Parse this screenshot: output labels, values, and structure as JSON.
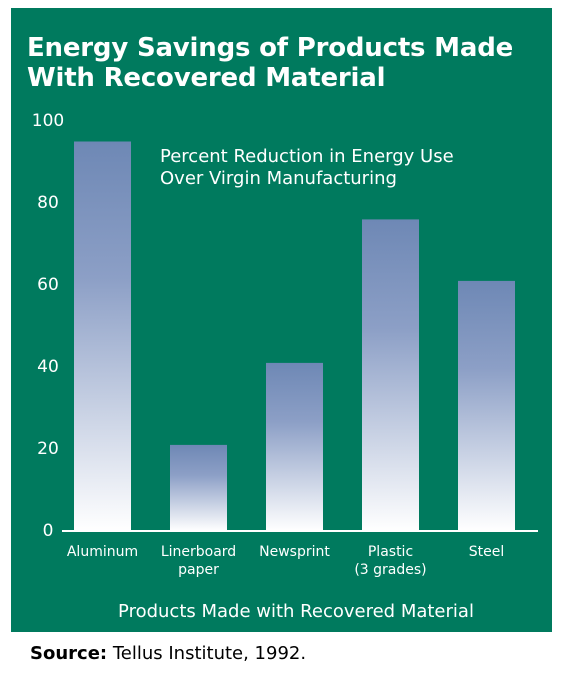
{
  "title_lines": [
    "Energy Savings of Products Made",
    "With Recovered Material"
  ],
  "source": {
    "label": "Source:",
    "text": " Tellus Institute, 1992."
  },
  "colors": {
    "background": "#007a5e",
    "bar_top": "#6e88b5",
    "bar_bottom": "#ffffff",
    "text": "#ffffff"
  },
  "chart_data": {
    "type": "bar",
    "title": "",
    "xlabel": "Products Made with Recovered Material",
    "ylabel": "",
    "annotation_lines": [
      "Percent Reduction in Energy Use",
      "Over Virgin Manufacturing"
    ],
    "ylim": [
      0,
      100
    ],
    "yticks": [
      0,
      20,
      40,
      60,
      80,
      100
    ],
    "grid": false,
    "categories": [
      [
        "Aluminum"
      ],
      [
        "Linerboard",
        "paper"
      ],
      [
        "Newsprint"
      ],
      [
        "Plastic",
        "(3 grades)"
      ],
      [
        "Steel"
      ]
    ],
    "values": [
      95,
      21,
      41,
      76,
      61
    ]
  }
}
